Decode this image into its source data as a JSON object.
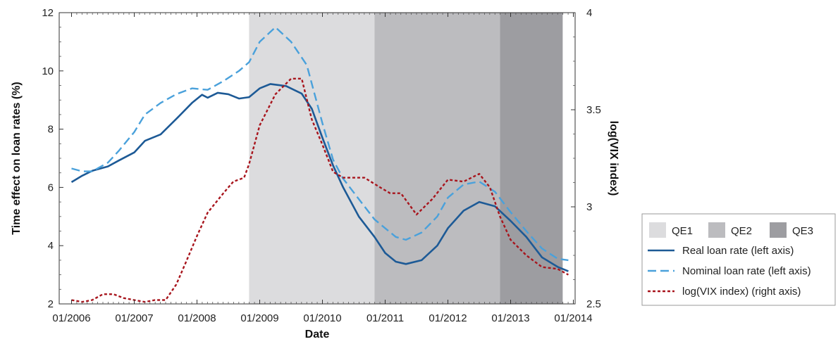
{
  "chart_data": {
    "type": "line",
    "xlabel": "Date",
    "ylabel_left": "Time effect on loan rates (%)",
    "ylabel_right": "log(VIX index)",
    "x_ticks": [
      "01/2006",
      "01/2007",
      "01/2008",
      "01/2009",
      "01/2010",
      "01/2011",
      "01/2012",
      "01/2013",
      "01/2014"
    ],
    "ylim_left": [
      2,
      12
    ],
    "yticks_left": [
      "2",
      "4",
      "6",
      "8",
      "10",
      "12"
    ],
    "ylim_right": [
      2.5,
      4
    ],
    "yticks_right": [
      "2.5",
      "3",
      "3.5",
      "4"
    ],
    "grid": false,
    "legend_position": "right, outside plot",
    "shaded_periods": [
      {
        "name": "QE1",
        "start": 2008.83,
        "end": 2010.83,
        "color": "#dcdcde"
      },
      {
        "name": "QE2",
        "start": 2010.83,
        "end": 2012.83,
        "color": "#bcbcbf"
      },
      {
        "name": "QE3",
        "start": 2012.83,
        "end": 2013.83,
        "color": "#9d9da1"
      }
    ],
    "series": [
      {
        "name": "Real loan rate (left axis)",
        "axis": "left",
        "style": "solid",
        "color": "#1d5a96",
        "points": [
          [
            2006.0,
            6.18
          ],
          [
            2006.17,
            6.4
          ],
          [
            2006.33,
            6.57
          ],
          [
            2006.58,
            6.72
          ],
          [
            2006.75,
            6.92
          ],
          [
            2007.0,
            7.2
          ],
          [
            2007.17,
            7.6
          ],
          [
            2007.42,
            7.82
          ],
          [
            2007.67,
            8.35
          ],
          [
            2007.92,
            8.9
          ],
          [
            2008.08,
            9.18
          ],
          [
            2008.17,
            9.08
          ],
          [
            2008.33,
            9.25
          ],
          [
            2008.5,
            9.2
          ],
          [
            2008.67,
            9.05
          ],
          [
            2008.83,
            9.1
          ],
          [
            2009.0,
            9.4
          ],
          [
            2009.17,
            9.55
          ],
          [
            2009.42,
            9.48
          ],
          [
            2009.67,
            9.22
          ],
          [
            2009.83,
            8.7
          ],
          [
            2010.0,
            7.7
          ],
          [
            2010.17,
            6.75
          ],
          [
            2010.33,
            6.0
          ],
          [
            2010.58,
            5.0
          ],
          [
            2010.83,
            4.3
          ],
          [
            2011.0,
            3.75
          ],
          [
            2011.17,
            3.45
          ],
          [
            2011.33,
            3.37
          ],
          [
            2011.58,
            3.5
          ],
          [
            2011.83,
            4.0
          ],
          [
            2012.0,
            4.6
          ],
          [
            2012.25,
            5.2
          ],
          [
            2012.5,
            5.5
          ],
          [
            2012.75,
            5.35
          ],
          [
            2013.0,
            4.85
          ],
          [
            2013.25,
            4.3
          ],
          [
            2013.5,
            3.6
          ],
          [
            2013.75,
            3.27
          ],
          [
            2013.92,
            3.12
          ]
        ]
      },
      {
        "name": "Nominal loan rate (left axis)",
        "axis": "left",
        "style": "dashed",
        "color": "#4aa1db",
        "points": [
          [
            2006.0,
            6.65
          ],
          [
            2006.17,
            6.55
          ],
          [
            2006.33,
            6.55
          ],
          [
            2006.58,
            6.85
          ],
          [
            2006.75,
            7.25
          ],
          [
            2007.0,
            7.9
          ],
          [
            2007.17,
            8.5
          ],
          [
            2007.42,
            8.9
          ],
          [
            2007.67,
            9.2
          ],
          [
            2007.92,
            9.4
          ],
          [
            2008.17,
            9.35
          ],
          [
            2008.42,
            9.65
          ],
          [
            2008.67,
            10.0
          ],
          [
            2008.83,
            10.3
          ],
          [
            2009.0,
            11.0
          ],
          [
            2009.25,
            11.5
          ],
          [
            2009.5,
            11.0
          ],
          [
            2009.75,
            10.2
          ],
          [
            2010.0,
            8.2
          ],
          [
            2010.17,
            6.95
          ],
          [
            2010.33,
            6.3
          ],
          [
            2010.58,
            5.6
          ],
          [
            2010.83,
            4.9
          ],
          [
            2011.0,
            4.6
          ],
          [
            2011.17,
            4.3
          ],
          [
            2011.33,
            4.2
          ],
          [
            2011.58,
            4.45
          ],
          [
            2011.83,
            5.0
          ],
          [
            2012.0,
            5.65
          ],
          [
            2012.25,
            6.1
          ],
          [
            2012.5,
            6.2
          ],
          [
            2012.75,
            5.85
          ],
          [
            2013.0,
            5.15
          ],
          [
            2013.25,
            4.5
          ],
          [
            2013.5,
            3.9
          ],
          [
            2013.75,
            3.55
          ],
          [
            2013.92,
            3.5
          ]
        ]
      },
      {
        "name": "log(VIX index) (right axis)",
        "axis": "right",
        "style": "dotted",
        "color": "#a8151d",
        "points": [
          [
            2006.0,
            2.52
          ],
          [
            2006.17,
            2.51
          ],
          [
            2006.33,
            2.52
          ],
          [
            2006.5,
            2.55
          ],
          [
            2006.67,
            2.55
          ],
          [
            2006.83,
            2.53
          ],
          [
            2007.0,
            2.52
          ],
          [
            2007.17,
            2.51
          ],
          [
            2007.33,
            2.52
          ],
          [
            2007.5,
            2.52
          ],
          [
            2007.67,
            2.6
          ],
          [
            2007.83,
            2.72
          ],
          [
            2008.0,
            2.85
          ],
          [
            2008.17,
            2.97
          ],
          [
            2008.42,
            3.07
          ],
          [
            2008.58,
            3.13
          ],
          [
            2008.75,
            3.15
          ],
          [
            2008.83,
            3.22
          ],
          [
            2009.0,
            3.42
          ],
          [
            2009.25,
            3.58
          ],
          [
            2009.5,
            3.66
          ],
          [
            2009.67,
            3.66
          ],
          [
            2009.83,
            3.45
          ],
          [
            2010.0,
            3.32
          ],
          [
            2010.17,
            3.18
          ],
          [
            2010.33,
            3.15
          ],
          [
            2010.67,
            3.15
          ],
          [
            2010.92,
            3.1
          ],
          [
            2011.08,
            3.07
          ],
          [
            2011.25,
            3.07
          ],
          [
            2011.5,
            2.96
          ],
          [
            2011.75,
            3.04
          ],
          [
            2012.0,
            3.14
          ],
          [
            2012.25,
            3.13
          ],
          [
            2012.5,
            3.17
          ],
          [
            2012.67,
            3.1
          ],
          [
            2012.83,
            2.95
          ],
          [
            2013.0,
            2.83
          ],
          [
            2013.25,
            2.75
          ],
          [
            2013.5,
            2.69
          ],
          [
            2013.75,
            2.68
          ],
          [
            2013.92,
            2.65
          ]
        ]
      }
    ]
  }
}
